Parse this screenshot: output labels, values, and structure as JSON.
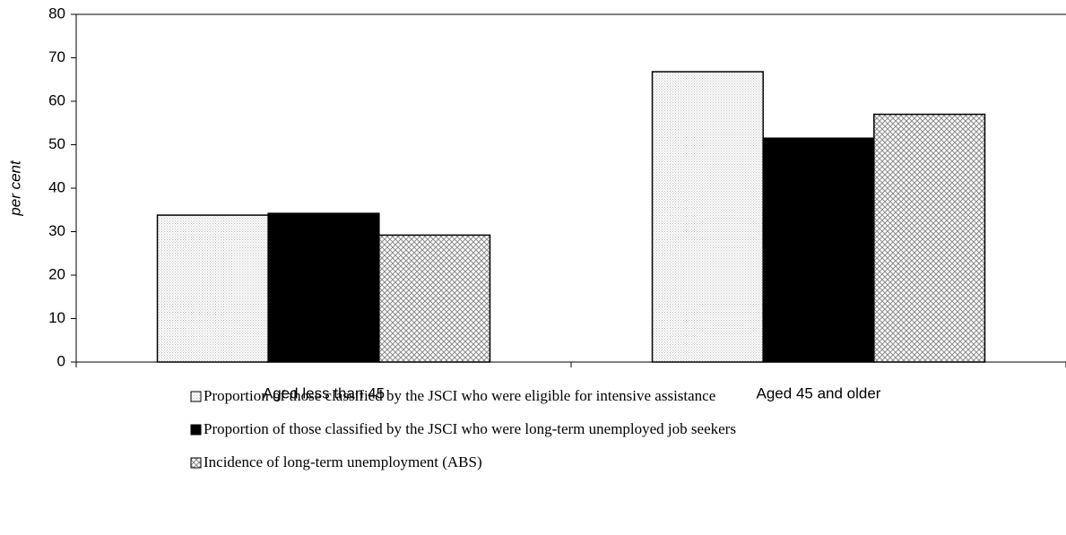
{
  "chart_data": {
    "type": "bar",
    "y_label": "per cent",
    "categories": [
      "Aged less than 45",
      "Aged 45 and older"
    ],
    "series": [
      {
        "name": "Proportion of those classified by the JSCI who were eligible for intensive assistance",
        "color": "#bdbdbd",
        "pattern": "dots",
        "values": [
          33.8,
          66.8
        ]
      },
      {
        "name": "Proportion of those classified by the JSCI who were long-term unemployed job seekers",
        "color": "#000000",
        "pattern": "solid",
        "values": [
          34.2,
          51.5
        ]
      },
      {
        "name": "Incidence of long-term unemployment (ABS)",
        "color": "#8a8a8a",
        "pattern": "crosshatch",
        "values": [
          29.2,
          57.0
        ]
      }
    ],
    "ylim": [
      0,
      80
    ],
    "yticks": [
      0,
      10,
      20,
      30,
      40,
      50,
      60,
      70,
      80
    ]
  }
}
